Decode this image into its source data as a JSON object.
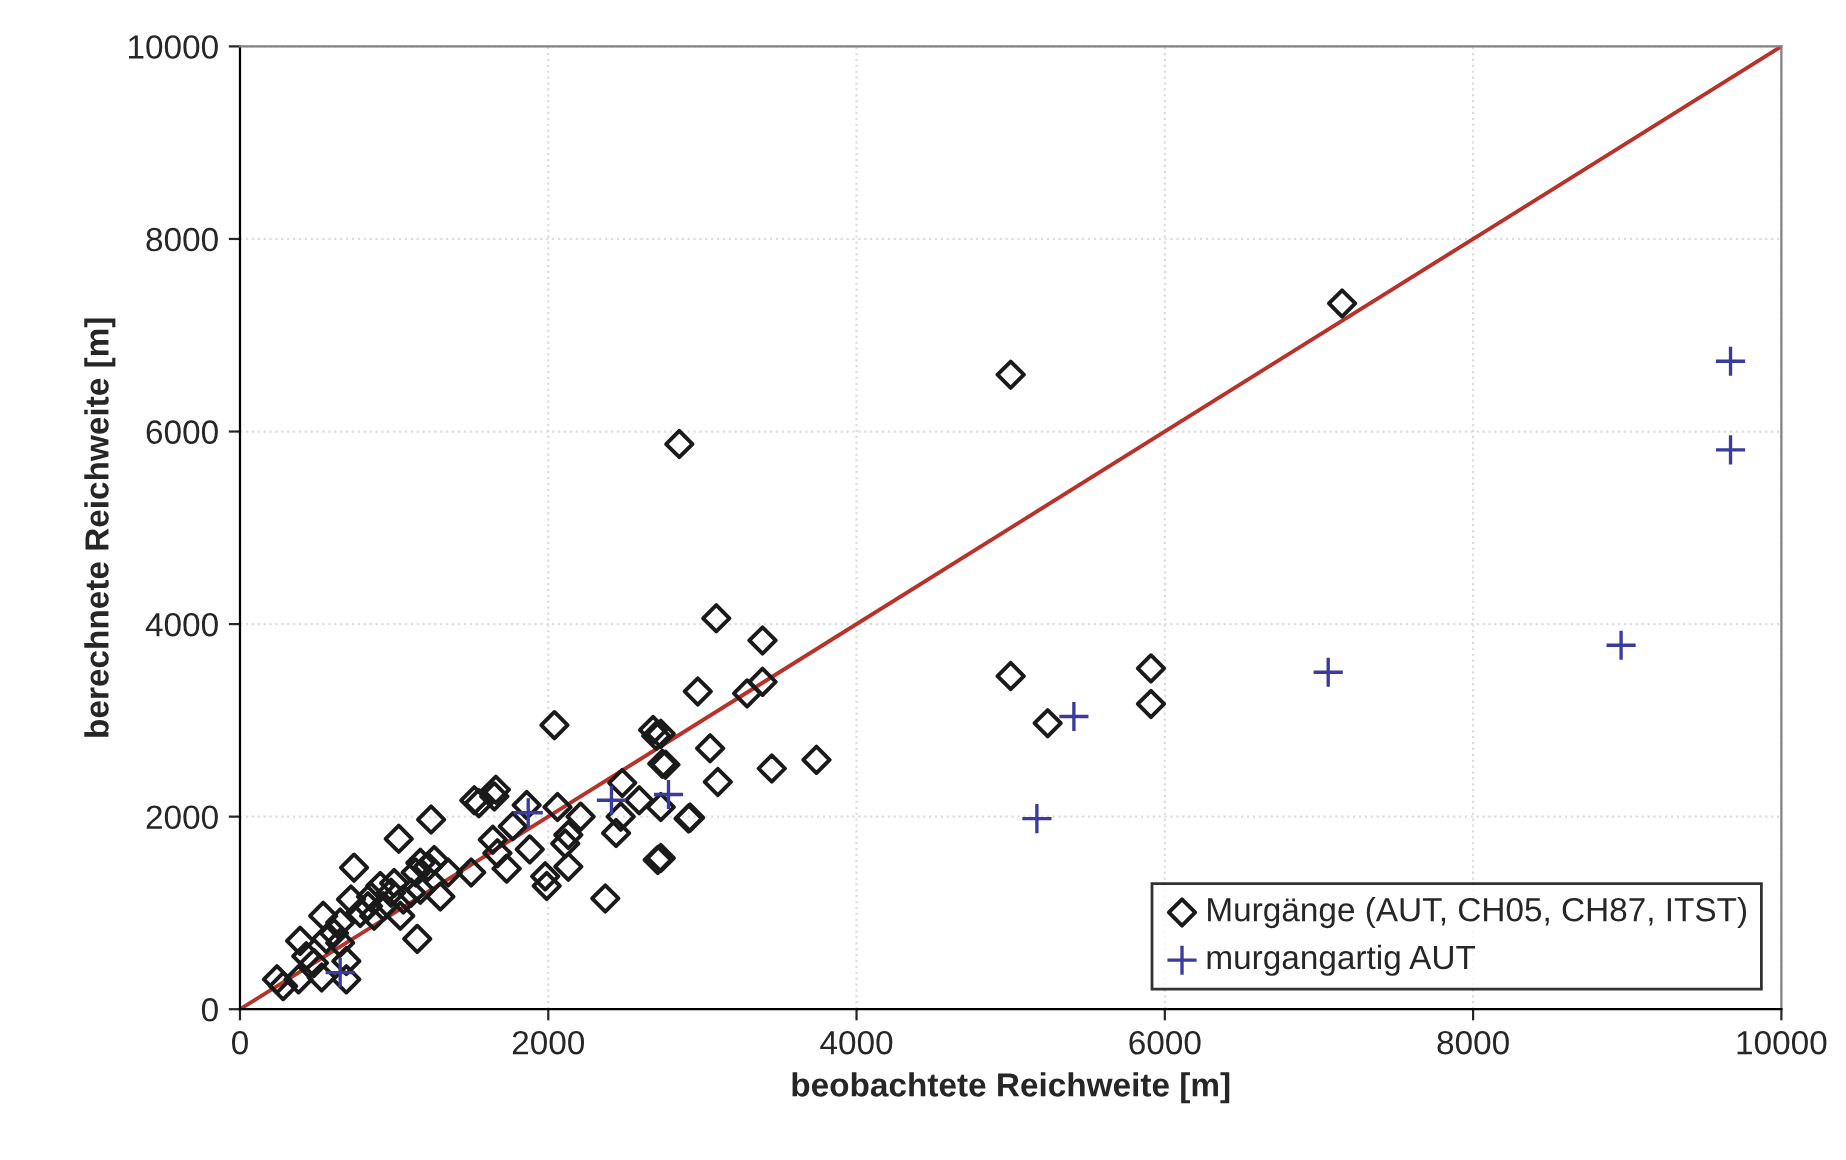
{
  "chart_data": {
    "type": "scatter",
    "xlabel": "beobachtete Reichweite [m]",
    "ylabel": "berechnete Reichweite [m]",
    "xlim": [
      0,
      10000
    ],
    "ylim": [
      0,
      10000
    ],
    "xticks": [
      0,
      2000,
      4000,
      6000,
      8000,
      10000
    ],
    "yticks": [
      0,
      2000,
      4000,
      6000,
      8000,
      10000
    ],
    "grid": true,
    "legend": "bottom right",
    "series": [
      {
        "name": "Murgänge (AUT, CH05, CH87, ITST)",
        "marker": "diamond",
        "color": "#1a1a1a",
        "x": [
          5000,
          7150,
          5000,
          5240,
          5910,
          5910,
          2850,
          3090,
          3390,
          2970,
          3290,
          3390,
          2730,
          2760,
          3050,
          3100,
          3450,
          3740,
          2730,
          2910,
          2730,
          2040,
          2680,
          2700,
          2740,
          2480,
          2590,
          1650,
          1660,
          1550,
          1240,
          1030,
          1860,
          1770,
          2060,
          2210,
          1640,
          1670,
          1730,
          1880,
          2130,
          2110,
          2130,
          1980,
          1990,
          2370,
          2710,
          2920,
          2470,
          2440,
          1500,
          740,
          540,
          390,
          240,
          380,
          530,
          690,
          690,
          1150,
          1260,
          1220,
          1170,
          1140,
          1300,
          1000,
          980,
          930,
          1060,
          1040,
          830,
          780,
          870,
          650,
          610,
          560,
          430,
          480,
          650,
          280,
          910,
          850,
          1170,
          1110,
          720,
          1350,
          1520
        ],
        "values": [
          6590,
          7330,
          3460,
          2970,
          3540,
          3170,
          5870,
          4060,
          3830,
          3300,
          3280,
          3400,
          2860,
          2540,
          2710,
          2360,
          2500,
          2590,
          2100,
          1980,
          1570,
          2950,
          2900,
          2840,
          2550,
          2350,
          2170,
          2210,
          2280,
          2140,
          1970,
          1770,
          2120,
          1900,
          2100,
          2000,
          1760,
          1620,
          1460,
          1660,
          1810,
          1720,
          1480,
          1380,
          1280,
          1150,
          1550,
          1990,
          2000,
          1830,
          1420,
          1470,
          970,
          710,
          310,
          310,
          330,
          500,
          310,
          730,
          1550,
          1480,
          1520,
          1420,
          1170,
          1310,
          1210,
          1070,
          1140,
          970,
          1070,
          1000,
          970,
          900,
          790,
          730,
          550,
          480,
          690,
          240,
          1280,
          1170,
          1240,
          1210,
          1140,
          1420,
          2170
        ]
      },
      {
        "name": "murgangartig AUT",
        "marker": "cross",
        "color": "#3a3aa0",
        "x": [
          650,
          1870,
          2410,
          2780,
          5170,
          5410,
          7060,
          8960,
          9670,
          9670
        ],
        "values": [
          380,
          2040,
          2170,
          2230,
          1980,
          3040,
          3500,
          3780,
          6730,
          5810
        ]
      },
      {
        "type": "line",
        "marker": "none",
        "color": "#b8322a",
        "x": [
          0,
          10000
        ],
        "values": [
          0,
          10000
        ]
      }
    ]
  }
}
